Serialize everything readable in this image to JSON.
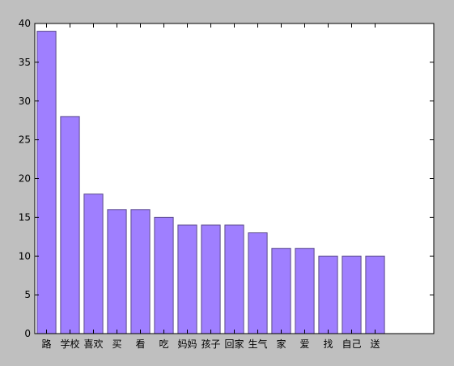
{
  "chart_data": {
    "type": "bar",
    "title": "",
    "xlabel": "",
    "ylabel": "",
    "categories": [
      "路",
      "学校",
      "喜欢",
      "买",
      "看",
      "吃",
      "妈妈",
      "孩子",
      "回家",
      "生气",
      "家",
      "爱",
      "找",
      "自己",
      "送"
    ],
    "values": [
      39,
      28,
      18,
      16,
      16,
      15,
      14,
      14,
      14,
      13,
      11,
      11,
      10,
      10,
      10
    ],
    "ylim": [
      0,
      40
    ],
    "yticks": [
      0,
      5,
      10,
      15,
      20,
      25,
      30,
      35,
      40
    ],
    "grid": false,
    "legend": "none",
    "colors": {
      "bar_fill": "#9f7fff",
      "bar_stroke": "#5a4a8a",
      "plot_background": "#ffffff",
      "figure_background": "#bfbfbf",
      "axis": "#000000"
    }
  }
}
